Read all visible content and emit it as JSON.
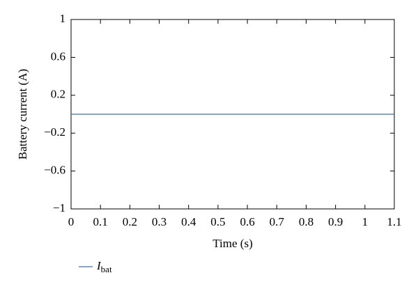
{
  "chart_data": {
    "type": "line",
    "x_label": "Time (s)",
    "y_label": "Battery current (A)",
    "x": [
      0,
      1.1
    ],
    "series": [
      {
        "name": "Ibat",
        "color": "#3b70b3",
        "values": [
          0,
          0
        ]
      }
    ],
    "xlim": [
      0,
      1.1
    ],
    "xticks": [
      0,
      0.1,
      0.2,
      0.3,
      0.4,
      0.5,
      0.6,
      0.7,
      0.8,
      0.9,
      1,
      1.1
    ],
    "ylim": [
      -1,
      1
    ],
    "yticks": [
      {
        "value": -1,
        "label": "−1"
      },
      {
        "value": -0.6,
        "label": "−0.6"
      },
      {
        "value": -0.2,
        "label": "−0.2"
      },
      0.2,
      0.6,
      1
    ],
    "grid": false,
    "legend": "bottom-left"
  }
}
